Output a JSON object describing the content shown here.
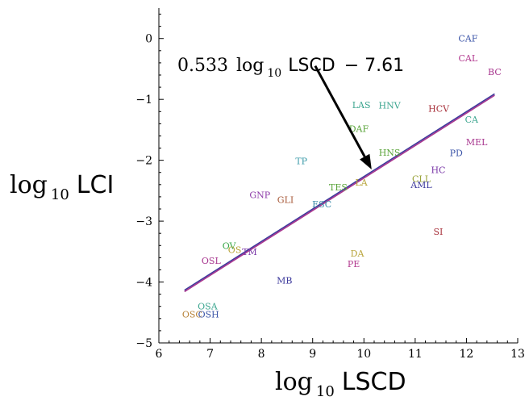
{
  "chart_data": {
    "type": "scatter",
    "xlabel": {
      "base": "log",
      "sub": "10",
      "word": "LSCD"
    },
    "ylabel": {
      "base": "log",
      "sub": "10",
      "word": "LCI"
    },
    "xlim": [
      6,
      13
    ],
    "ylim": [
      -5,
      0.5
    ],
    "xticks": [
      6,
      7,
      8,
      9,
      10,
      11,
      12,
      13
    ],
    "yticks": [
      0,
      -1,
      -2,
      -3,
      -4,
      -5
    ],
    "xtick_labels": [
      "6",
      "7",
      "8",
      "9",
      "10",
      "11",
      "12",
      "13"
    ],
    "ytick_labels": [
      "0",
      "−1",
      "−2",
      "−3",
      "−4",
      "−5"
    ],
    "fit": {
      "slope": 0.533,
      "intercept": -7.61,
      "x_range": [
        6.5,
        12.55
      ],
      "colors": [
        "#3d3a9c",
        "#a8368f"
      ]
    },
    "annotation": {
      "coef": "0.533",
      "log": "log",
      "sub": "10",
      "word": "LSCD",
      "rest": "− 7.61",
      "arrow_from": [
        9.05,
        -0.45
      ],
      "arrow_to": [
        10.15,
        -2.15
      ]
    },
    "points": [
      {
        "label": "CAF",
        "x": 12.03,
        "y": 0.0,
        "color": "#3c55a8"
      },
      {
        "label": "CAL",
        "x": 12.03,
        "y": -0.32,
        "color": "#b2398f"
      },
      {
        "label": "BC",
        "x": 12.55,
        "y": -0.55,
        "color": "#a8368f"
      },
      {
        "label": "LAS",
        "x": 9.95,
        "y": -1.09,
        "color": "#3da690"
      },
      {
        "label": "HNV",
        "x": 10.5,
        "y": -1.1,
        "color": "#3da690"
      },
      {
        "label": "HCV",
        "x": 11.46,
        "y": -1.15,
        "color": "#a8323c"
      },
      {
        "label": "CA",
        "x": 12.1,
        "y": -1.33,
        "color": "#3da690"
      },
      {
        "label": "DAF",
        "x": 9.9,
        "y": -1.48,
        "color": "#5aa43a"
      },
      {
        "label": "MEL",
        "x": 12.2,
        "y": -1.7,
        "color": "#a8368f"
      },
      {
        "label": "HNS",
        "x": 10.5,
        "y": -1.87,
        "color": "#5aa43a"
      },
      {
        "label": "PD",
        "x": 11.8,
        "y": -1.88,
        "color": "#3c55a8"
      },
      {
        "label": "TP",
        "x": 8.78,
        "y": -2.01,
        "color": "#3a9aa8"
      },
      {
        "label": "HC",
        "x": 11.45,
        "y": -2.16,
        "color": "#7a38a8"
      },
      {
        "label": "CLL",
        "x": 11.12,
        "y": -2.3,
        "color": "#9aa33a"
      },
      {
        "label": "AML",
        "x": 11.12,
        "y": -2.4,
        "color": "#3d3a9c"
      },
      {
        "label": "LA",
        "x": 9.95,
        "y": -2.36,
        "color": "#b8a43a"
      },
      {
        "label": "TES",
        "x": 9.5,
        "y": -2.44,
        "color": "#5aa43a"
      },
      {
        "label": "GNP",
        "x": 7.97,
        "y": -2.57,
        "color": "#8c3aa8"
      },
      {
        "label": "GLI",
        "x": 8.47,
        "y": -2.65,
        "color": "#a85a3a"
      },
      {
        "label": "ESC",
        "x": 9.18,
        "y": -2.72,
        "color": "#3a8aa8"
      },
      {
        "label": "SI",
        "x": 11.45,
        "y": -3.17,
        "color": "#a8323c"
      },
      {
        "label": "OV",
        "x": 7.37,
        "y": -3.4,
        "color": "#3aa84a"
      },
      {
        "label": "OS",
        "x": 7.48,
        "y": -3.47,
        "color": "#b8a43a"
      },
      {
        "label": "TM",
        "x": 7.77,
        "y": -3.5,
        "color": "#7a38a8"
      },
      {
        "label": "DA",
        "x": 9.87,
        "y": -3.53,
        "color": "#b8a43a"
      },
      {
        "label": "OSL",
        "x": 7.02,
        "y": -3.65,
        "color": "#a8368f"
      },
      {
        "label": "PE",
        "x": 9.8,
        "y": -3.7,
        "color": "#b2398f"
      },
      {
        "label": "MB",
        "x": 8.45,
        "y": -3.97,
        "color": "#3d3a9c"
      },
      {
        "label": "OSA",
        "x": 6.95,
        "y": -4.4,
        "color": "#3da690"
      },
      {
        "label": "OSC",
        "x": 6.65,
        "y": -4.53,
        "color": "#b8843a"
      },
      {
        "label": "OSH",
        "x": 6.97,
        "y": -4.53,
        "color": "#3c55a8"
      }
    ]
  }
}
